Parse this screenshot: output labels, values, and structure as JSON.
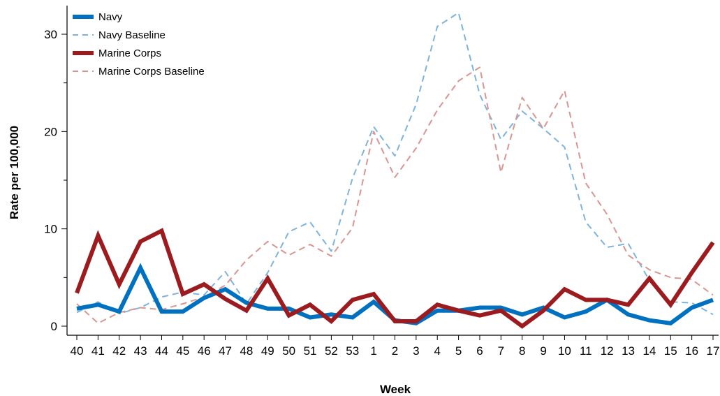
{
  "chart_data": {
    "type": "line",
    "title": "",
    "xlabel": "Week",
    "ylabel": "Rate per 100,000",
    "ylim": [
      0,
      32
    ],
    "yticks": [
      0,
      10,
      20,
      30
    ],
    "grid": false,
    "legend_position": "top-left",
    "categories": [
      "40",
      "41",
      "42",
      "43",
      "44",
      "45",
      "46",
      "47",
      "48",
      "49",
      "50",
      "51",
      "52",
      "53",
      "1",
      "2",
      "3",
      "4",
      "5",
      "6",
      "7",
      "8",
      "9",
      "10",
      "11",
      "12",
      "13",
      "14",
      "15",
      "16",
      "17"
    ],
    "series": [
      {
        "name": "Navy",
        "color": "#0070c0",
        "style": "solid-thick",
        "values": [
          1.8,
          2.2,
          1.5,
          6.0,
          1.5,
          1.5,
          2.9,
          3.8,
          2.4,
          1.8,
          1.8,
          0.9,
          1.2,
          0.9,
          2.5,
          0.6,
          0.3,
          1.6,
          1.6,
          1.9,
          1.9,
          1.2,
          1.9,
          0.9,
          1.5,
          2.7,
          1.2,
          0.6,
          0.3,
          1.9,
          2.7
        ]
      },
      {
        "name": "Navy Baseline",
        "color": "#7db3dd",
        "style": "dashed",
        "values": [
          1.4,
          2.5,
          1.3,
          1.9,
          3.0,
          3.5,
          3.2,
          5.6,
          2.3,
          5.5,
          9.7,
          10.7,
          7.7,
          15.2,
          20.5,
          17.5,
          22.8,
          30.8,
          32.2,
          23.8,
          19.2,
          22.1,
          20.3,
          18.4,
          10.7,
          8.1,
          8.5,
          4.7,
          2.5,
          2.4,
          1.2
        ]
      },
      {
        "name": "Marine Corps",
        "color": "#9b1b1f",
        "style": "solid-thick",
        "values": [
          3.4,
          9.3,
          4.3,
          8.7,
          9.8,
          3.3,
          4.3,
          2.8,
          1.6,
          4.9,
          1.1,
          2.2,
          0.5,
          2.7,
          3.3,
          0.5,
          0.5,
          2.2,
          1.6,
          1.1,
          1.6,
          0.0,
          1.6,
          3.8,
          2.7,
          2.7,
          2.2,
          4.9,
          2.2,
          5.5,
          8.6
        ]
      },
      {
        "name": "Marine Corps Baseline",
        "color": "#d99591",
        "style": "dashed",
        "values": [
          2.3,
          0.3,
          1.4,
          1.9,
          1.7,
          2.3,
          3.0,
          4.2,
          6.8,
          8.7,
          7.3,
          8.4,
          7.2,
          10.1,
          20.0,
          15.3,
          18.3,
          22.2,
          25.2,
          26.6,
          15.8,
          23.5,
          20.3,
          24.2,
          14.7,
          11.5,
          7.3,
          5.8,
          5.0,
          4.8,
          3.2
        ]
      }
    ]
  }
}
